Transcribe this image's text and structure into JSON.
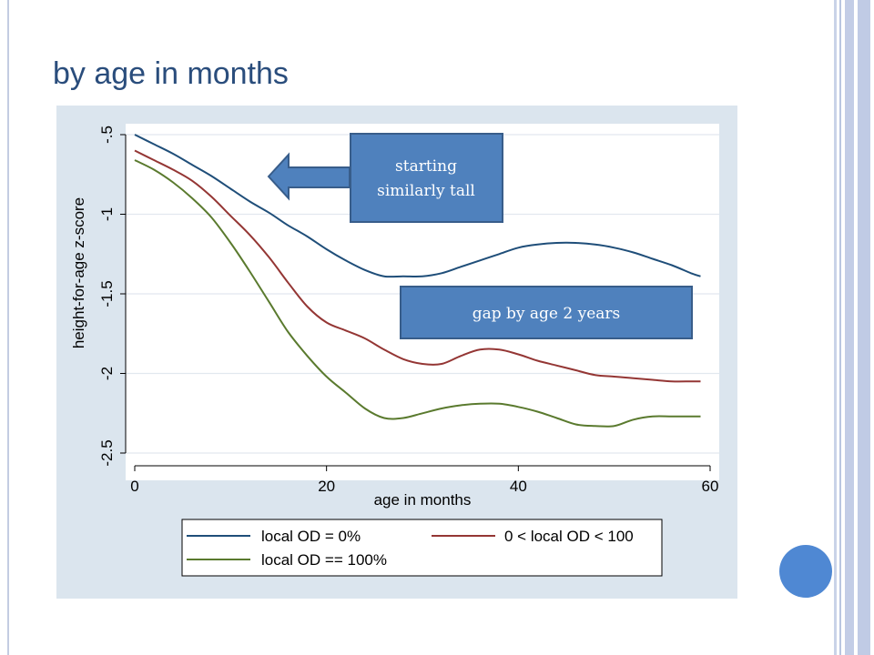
{
  "slide": {
    "title": "by age in months"
  },
  "callouts": {
    "starting": [
      "starting",
      "similarly tall"
    ],
    "gap": "gap by age 2 years"
  },
  "colors": {
    "panel_bg": "#dbe5ee",
    "plot_bg": "#ffffff",
    "callout_fill": "#4f81bd",
    "callout_stroke": "#385d8a",
    "accent_circle": "#4f88d3",
    "title": "#2a4d7c"
  },
  "chart_data": {
    "type": "line",
    "xlabel": "age in months",
    "ylabel": "height-for-age z-score",
    "xlim": [
      0,
      60
    ],
    "ylim": [
      -2.5,
      -0.5
    ],
    "xticks": [
      0,
      20,
      40,
      60
    ],
    "yticks": [
      -0.5,
      -1,
      -1.5,
      -2,
      -2.5
    ],
    "ytick_labels": [
      "-.5",
      "-1",
      "-1.5",
      "-2",
      "-2.5"
    ],
    "grid": "horizontal",
    "legend_position": "bottom",
    "x": [
      0,
      2,
      4,
      6,
      8,
      10,
      12,
      14,
      16,
      18,
      20,
      22,
      24,
      26,
      28,
      30,
      32,
      34,
      36,
      38,
      40,
      42,
      44,
      46,
      48,
      50,
      52,
      54,
      56,
      58,
      59
    ],
    "series": [
      {
        "name": "local OD = 0%",
        "color": "#1f4e79",
        "values": [
          -0.5,
          -0.56,
          -0.62,
          -0.69,
          -0.76,
          -0.84,
          -0.92,
          -0.99,
          -1.07,
          -1.14,
          -1.22,
          -1.29,
          -1.35,
          -1.39,
          -1.39,
          -1.39,
          -1.37,
          -1.33,
          -1.29,
          -1.25,
          -1.21,
          -1.19,
          -1.18,
          -1.18,
          -1.19,
          -1.21,
          -1.24,
          -1.28,
          -1.32,
          -1.37,
          -1.39
        ]
      },
      {
        "name": "0 < local OD < 100",
        "color": "#943634",
        "values": [
          -0.6,
          -0.66,
          -0.72,
          -0.79,
          -0.89,
          -1.01,
          -1.13,
          -1.27,
          -1.43,
          -1.58,
          -1.68,
          -1.73,
          -1.78,
          -1.85,
          -1.91,
          -1.94,
          -1.94,
          -1.89,
          -1.85,
          -1.85,
          -1.88,
          -1.92,
          -1.95,
          -1.98,
          -2.01,
          -2.02,
          -2.03,
          -2.04,
          -2.05,
          -2.05,
          -2.05
        ]
      },
      {
        "name": "local OD == 100%",
        "color": "#5a7a2e",
        "values": [
          -0.66,
          -0.72,
          -0.8,
          -0.9,
          -1.02,
          -1.18,
          -1.36,
          -1.55,
          -1.74,
          -1.89,
          -2.02,
          -2.12,
          -2.22,
          -2.28,
          -2.28,
          -2.25,
          -2.22,
          -2.2,
          -2.19,
          -2.19,
          -2.21,
          -2.24,
          -2.28,
          -2.32,
          -2.33,
          -2.33,
          -2.29,
          -2.27,
          -2.27,
          -2.27,
          -2.27
        ]
      }
    ]
  }
}
